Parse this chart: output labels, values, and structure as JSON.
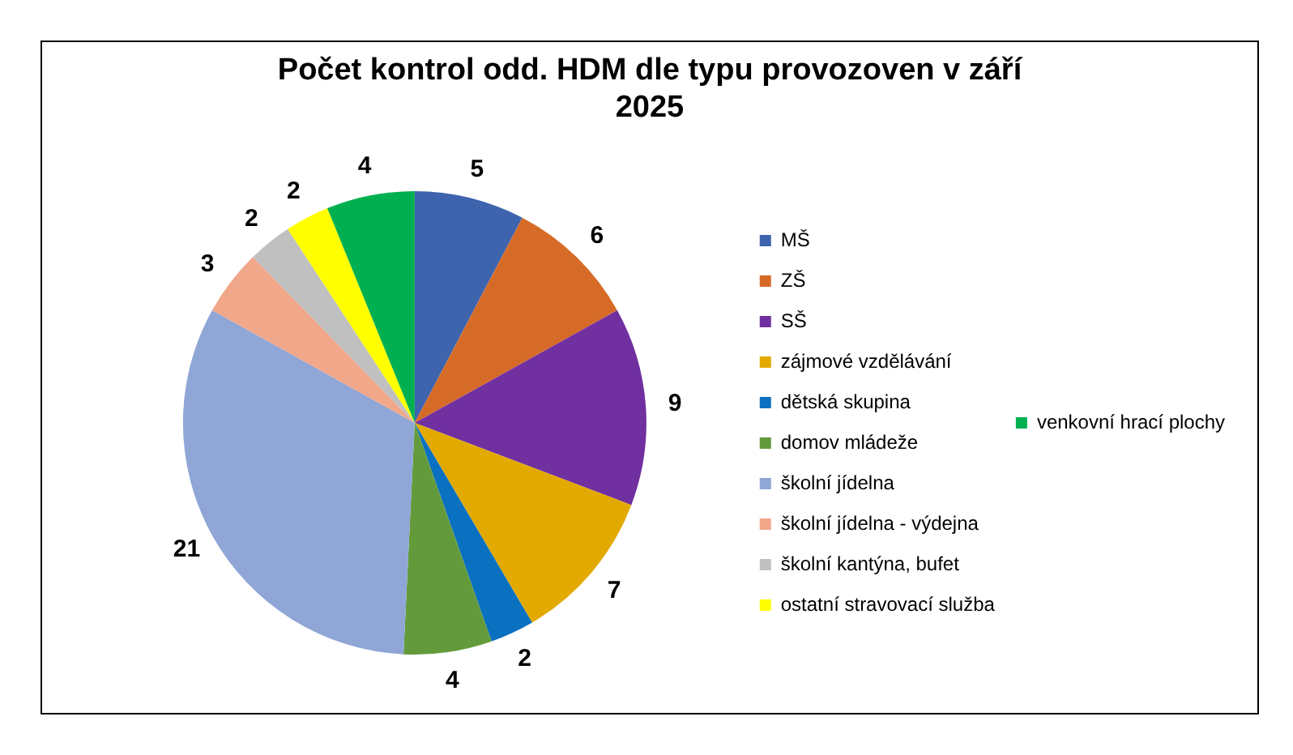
{
  "chart_data": {
    "type": "pie",
    "title": "Počet kontrol odd. HDM dle typu provozoven v září 2025",
    "categories": [
      "MŠ",
      "ZŠ",
      "SŠ",
      "zájmové vzdělávání",
      "dětská skupina",
      "domov mládeže",
      "školní jídelna",
      "školní jídelna - výdejna",
      "školní kantýna, bufet",
      "ostatní stravovací služba",
      "venkovní hrací plochy"
    ],
    "values": [
      5,
      6,
      9,
      7,
      2,
      4,
      21,
      3,
      2,
      2,
      4
    ],
    "colors": [
      "#3f64ae",
      "#d66b28",
      "#7030a0",
      "#e2a900",
      "#0a70c0",
      "#639b3c",
      "#8fa6d6",
      "#f0a78a",
      "#c0c0c0",
      "#ffff00",
      "#00b050"
    ],
    "data_labels": true,
    "legend": "right"
  }
}
